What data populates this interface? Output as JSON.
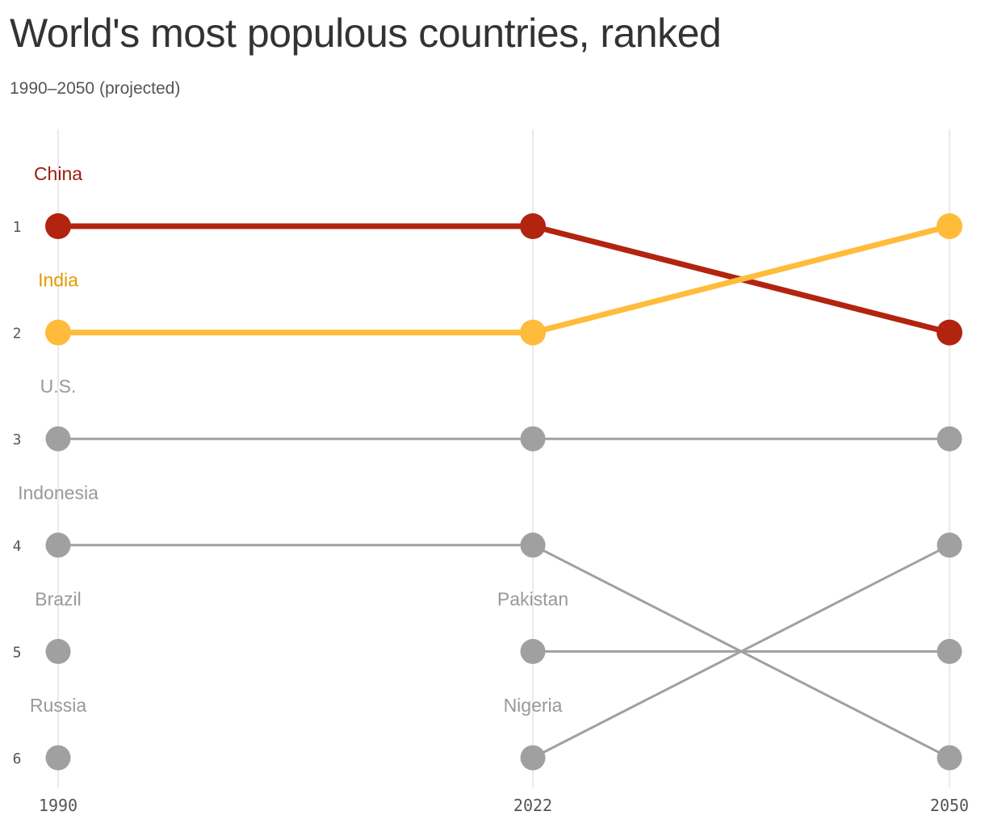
{
  "title": "World's most populous countries, ranked",
  "subtitle": "1990–2050 (projected)",
  "colors": {
    "china": "#b22410",
    "china_label": "#9e1a0c",
    "india": "#ffbc3b",
    "india_label": "#e39a00",
    "other": "#a0a0a0",
    "other_label": "#999999",
    "grid": "#dddddd"
  },
  "chart_data": {
    "type": "line",
    "chart_subtype": "bump chart (rank over time)",
    "x": [
      "1990",
      "2022",
      "2050"
    ],
    "y_ticks": [
      "1",
      "2",
      "3",
      "4",
      "5",
      "6"
    ],
    "y_reversed": true,
    "grid": "vertical lines at each year",
    "series": [
      {
        "name": "China",
        "ranks": [
          1,
          1,
          2
        ],
        "color": "china",
        "emphasis": true
      },
      {
        "name": "India",
        "ranks": [
          2,
          2,
          1
        ],
        "color": "india",
        "emphasis": true
      },
      {
        "name": "U.S.",
        "ranks": [
          3,
          3,
          3
        ],
        "color": "other"
      },
      {
        "name": "Indonesia",
        "ranks": [
          4,
          4,
          6
        ],
        "color": "other"
      },
      {
        "name": "Brazil",
        "ranks": [
          5,
          null,
          null
        ],
        "color": "other"
      },
      {
        "name": "Pakistan",
        "ranks": [
          null,
          5,
          5
        ],
        "color": "other"
      },
      {
        "name": "Russia",
        "ranks": [
          6,
          null,
          null
        ],
        "color": "other"
      },
      {
        "name": "Nigeria",
        "ranks": [
          null,
          6,
          4
        ],
        "color": "other"
      }
    ]
  }
}
